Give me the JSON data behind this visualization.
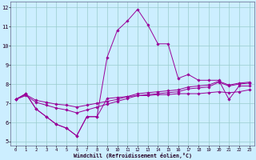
{
  "xlabel": "Windchill (Refroidissement éolien,°C)",
  "background_color": "#cceeff",
  "grid_color": "#99cccc",
  "line_color": "#990099",
  "xlim": [
    -0.5,
    23.5
  ],
  "ylim": [
    4.8,
    12.3
  ],
  "yticks": [
    5,
    6,
    7,
    8,
    9,
    10,
    11,
    12
  ],
  "xticks": [
    0,
    1,
    2,
    3,
    4,
    5,
    6,
    7,
    8,
    9,
    10,
    11,
    12,
    13,
    14,
    15,
    16,
    17,
    18,
    19,
    20,
    21,
    22,
    23
  ],
  "line1_x": [
    0,
    1,
    2,
    3,
    4,
    5,
    6,
    7,
    8,
    9,
    10,
    11,
    12,
    13,
    14,
    15,
    16,
    17,
    18,
    19,
    20,
    21,
    22,
    23
  ],
  "line1_y": [
    7.2,
    7.5,
    6.7,
    6.3,
    5.9,
    5.7,
    5.3,
    6.3,
    6.3,
    7.25,
    7.3,
    7.35,
    7.4,
    7.4,
    7.45,
    7.45,
    7.5,
    7.5,
    7.5,
    7.55,
    7.6,
    7.55,
    7.6,
    7.7
  ],
  "line2_x": [
    0,
    1,
    2,
    3,
    4,
    5,
    6,
    7,
    8,
    9,
    10,
    11,
    12,
    13,
    14,
    15,
    16,
    17,
    18,
    19,
    20,
    21,
    22,
    23
  ],
  "line2_y": [
    7.2,
    7.5,
    6.7,
    6.3,
    5.9,
    5.7,
    5.3,
    6.3,
    6.3,
    9.4,
    10.8,
    11.3,
    11.9,
    11.1,
    10.1,
    10.1,
    8.3,
    8.5,
    8.2,
    8.2,
    8.2,
    7.2,
    7.9,
    7.9
  ],
  "line3_x": [
    0,
    1,
    2,
    3,
    4,
    5,
    6,
    7,
    8,
    9,
    10,
    11,
    12,
    13,
    14,
    15,
    16,
    17,
    18,
    19,
    20,
    21,
    22,
    23
  ],
  "line3_y": [
    7.2,
    7.4,
    7.05,
    6.9,
    6.75,
    6.65,
    6.5,
    6.65,
    6.8,
    6.95,
    7.1,
    7.25,
    7.4,
    7.45,
    7.5,
    7.55,
    7.6,
    7.75,
    7.8,
    7.85,
    8.1,
    7.9,
    8.0,
    8.05
  ],
  "line4_x": [
    0,
    1,
    2,
    3,
    4,
    5,
    6,
    7,
    8,
    9,
    10,
    11,
    12,
    13,
    14,
    15,
    16,
    17,
    18,
    19,
    20,
    21,
    22,
    23
  ],
  "line4_y": [
    7.2,
    7.45,
    7.15,
    7.05,
    6.95,
    6.9,
    6.8,
    6.9,
    7.0,
    7.1,
    7.2,
    7.35,
    7.5,
    7.55,
    7.6,
    7.65,
    7.7,
    7.85,
    7.9,
    7.95,
    8.15,
    7.95,
    8.05,
    8.1
  ]
}
